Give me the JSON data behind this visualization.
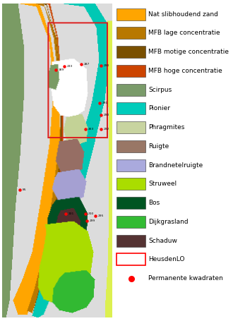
{
  "legend_items": [
    {
      "label": "Nat slibhoudend zand",
      "color": "#FFA500",
      "type": "rect"
    },
    {
      "label": "MFB lage concentratie",
      "color": "#B87800",
      "type": "rect"
    },
    {
      "label": "MFB motige concentratie",
      "color": "#7A5000",
      "type": "rect"
    },
    {
      "label": "MFB hoge concentratie",
      "color": "#CC4400",
      "type": "rect"
    },
    {
      "label": "Scirpus",
      "color": "#7A9B6A",
      "type": "rect"
    },
    {
      "label": "Pionier",
      "color": "#00CCBB",
      "type": "rect"
    },
    {
      "label": "Phragmites",
      "color": "#C8D4A0",
      "type": "rect"
    },
    {
      "label": "Ruigte",
      "color": "#997766",
      "type": "rect"
    },
    {
      "label": "Brandnetelruigte",
      "color": "#AAAADD",
      "type": "rect"
    },
    {
      "label": "Struweel",
      "color": "#AADD00",
      "type": "rect"
    },
    {
      "label": "Bos",
      "color": "#005522",
      "type": "rect"
    },
    {
      "label": "Dijkgrasland",
      "color": "#33BB33",
      "type": "rect"
    },
    {
      "label": "Schaduw",
      "color": "#553333",
      "type": "rect"
    },
    {
      "label": "HeusdenLO",
      "color": "#FF0000",
      "type": "rect_outline"
    },
    {
      "label": "Permanente kwadraten",
      "color": "#FF0000",
      "type": "dot"
    }
  ],
  "background_color": "#FFFFFF",
  "fig_width": 3.3,
  "fig_height": 4.55,
  "dpi": 100,
  "font_size": 6.5
}
